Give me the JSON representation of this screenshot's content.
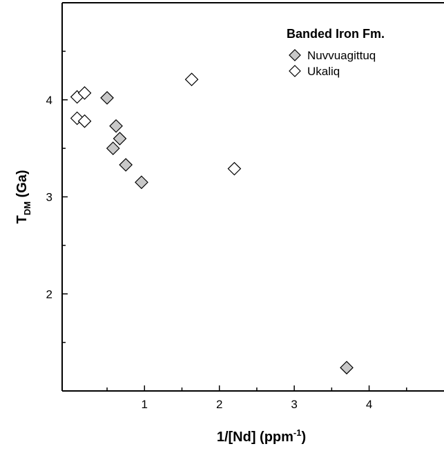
{
  "chart_data": {
    "type": "scatter",
    "xlabel": "1/[Nd] (ppm",
    "xlabel_sup": "-1",
    "xlabel_suffix": ")",
    "ylabel": "T",
    "ylabel_sub": "DM",
    "ylabel_suffix": " (Ga)",
    "xlim": [
      -0.1,
      5.0
    ],
    "ylim": [
      1.0,
      5.0
    ],
    "x_ticks": [
      1,
      2,
      3,
      4
    ],
    "y_ticks": [
      2,
      3,
      4
    ],
    "legend": {
      "title": "Banded Iron Fm.",
      "position": "top-right"
    },
    "series": [
      {
        "name": "Nuvvuagittuq",
        "marker": "diamond",
        "fill": "#c8c8c8",
        "points": [
          {
            "x": 0.5,
            "y": 4.02
          },
          {
            "x": 0.62,
            "y": 3.73
          },
          {
            "x": 0.67,
            "y": 3.6
          },
          {
            "x": 0.58,
            "y": 3.5
          },
          {
            "x": 0.75,
            "y": 3.33
          },
          {
            "x": 0.96,
            "y": 3.15
          },
          {
            "x": 3.7,
            "y": 1.24
          }
        ]
      },
      {
        "name": "Ukaliq",
        "marker": "diamond",
        "fill": "#ffffff",
        "points": [
          {
            "x": 0.1,
            "y": 4.03
          },
          {
            "x": 0.2,
            "y": 4.07
          },
          {
            "x": 0.1,
            "y": 3.81
          },
          {
            "x": 0.2,
            "y": 3.78
          },
          {
            "x": 1.63,
            "y": 4.21
          },
          {
            "x": 2.2,
            "y": 3.29
          }
        ]
      }
    ]
  }
}
